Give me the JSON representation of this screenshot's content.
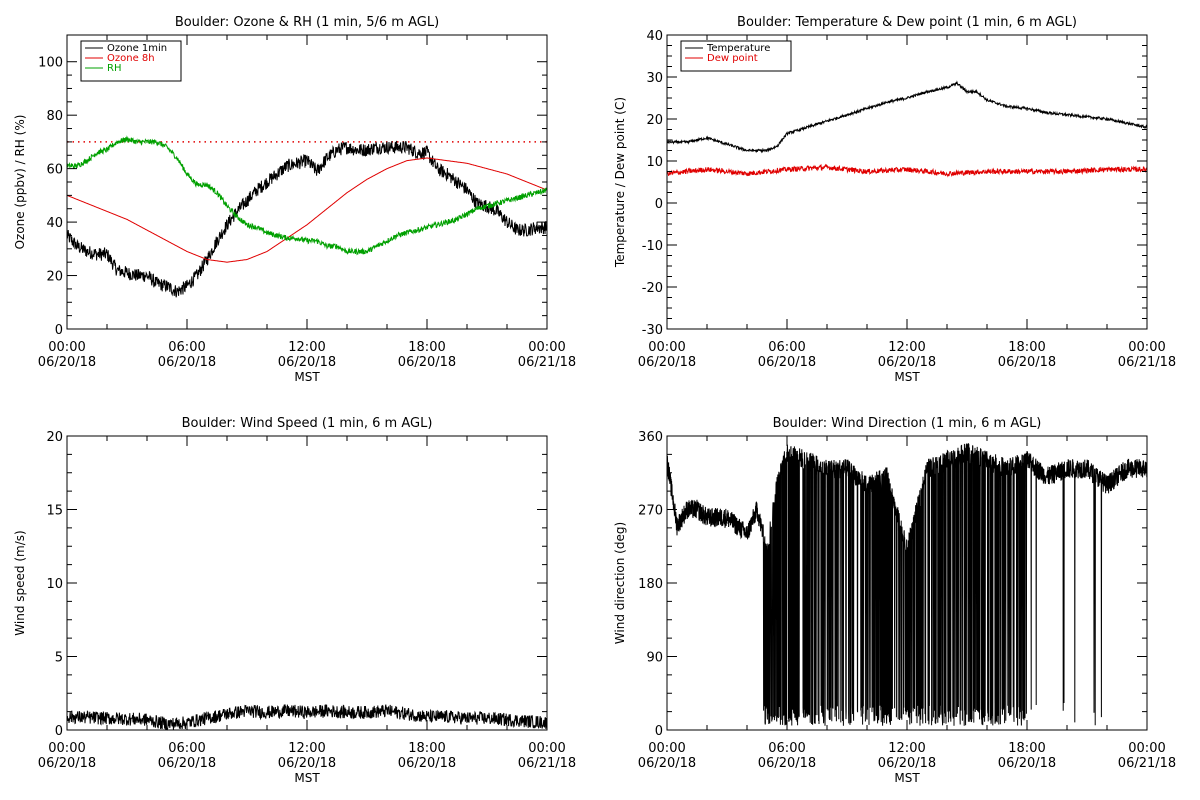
{
  "chart_data": [
    {
      "type": "line",
      "title": "Boulder: Ozone & RH (1 min, 5/6 m AGL)",
      "ylabel": "Ozone (ppbv) / RH (%)",
      "xlabel": "MST",
      "xlim": [
        0,
        24
      ],
      "ylim": [
        0,
        110
      ],
      "yticks": [
        0,
        20,
        40,
        60,
        80,
        100
      ],
      "xtick_times": [
        "00:00",
        "06:00",
        "12:00",
        "18:00",
        "00:00"
      ],
      "xtick_dates": [
        "06/20/18",
        "06/20/18",
        "06/20/18",
        "06/20/18",
        "06/21/18"
      ],
      "reference_line": {
        "y": 70,
        "style": "dotted",
        "color": "#e00000"
      },
      "legend": {
        "position": "top-left"
      },
      "series": [
        {
          "name": "Ozone 1min",
          "color": "#000000",
          "noise": 2.5,
          "dense": false,
          "x": [
            0,
            0.5,
            1,
            1.5,
            2,
            2.5,
            3,
            3.5,
            4,
            4.5,
            5,
            5.5,
            6,
            6.5,
            7,
            7.5,
            8,
            8.5,
            9,
            9.5,
            10,
            10.5,
            11,
            11.5,
            12,
            12.5,
            13,
            13.5,
            14,
            14.5,
            15,
            15.5,
            16,
            16.5,
            17,
            17.5,
            18,
            18.5,
            19,
            19.5,
            20,
            20.5,
            21,
            21.5,
            22,
            22.5,
            23,
            23.5,
            24
          ],
          "y": [
            35,
            31,
            29,
            28,
            28,
            22,
            21,
            20,
            20,
            17,
            16,
            14,
            16,
            20,
            26,
            33,
            39,
            44,
            48,
            52,
            55,
            58,
            61,
            62,
            63,
            59,
            64,
            67,
            68,
            67,
            67,
            68,
            68,
            68,
            68,
            66,
            66,
            60,
            58,
            55,
            52,
            47,
            46,
            44,
            40,
            37,
            37,
            38,
            38
          ]
        },
        {
          "name": "Ozone 8h",
          "color": "#e00000",
          "noise": 0,
          "dense": false,
          "x": [
            0,
            1,
            2,
            3,
            4,
            5,
            6,
            7,
            8,
            9,
            10,
            11,
            12,
            13,
            14,
            15,
            16,
            17,
            18,
            19,
            20,
            21,
            22,
            23,
            24
          ],
          "y": [
            50,
            47,
            44,
            41,
            37,
            33,
            29,
            26,
            25,
            26,
            29,
            34,
            39,
            45,
            51,
            56,
            60,
            63,
            64,
            63,
            62,
            60,
            58,
            55,
            52
          ]
        },
        {
          "name": "RH",
          "color": "#00a000",
          "noise": 1.0,
          "dense": false,
          "x": [
            0,
            0.5,
            1,
            1.5,
            2,
            2.5,
            3,
            3.5,
            4,
            4.5,
            5,
            5.5,
            6,
            6.5,
            7,
            7.5,
            8,
            8.5,
            9,
            9.5,
            10,
            10.5,
            11,
            11.5,
            12,
            12.5,
            13,
            13.5,
            14,
            14.5,
            15,
            15.5,
            16,
            16.5,
            17,
            17.5,
            18,
            18.5,
            19,
            19.5,
            20,
            20.5,
            21,
            21.5,
            22,
            22.5,
            23,
            23.5,
            24
          ],
          "y": [
            61,
            61,
            63,
            66,
            67,
            70,
            71,
            70,
            70,
            70,
            68,
            64,
            58,
            54,
            54,
            51,
            46,
            42,
            39,
            38,
            36,
            35,
            34,
            34,
            33,
            33,
            31,
            31,
            29,
            29,
            29,
            31,
            33,
            35,
            36,
            37,
            38,
            39,
            40,
            41,
            43,
            45,
            46,
            47,
            48,
            49,
            50,
            51,
            52
          ]
        }
      ]
    },
    {
      "type": "line",
      "title": "Boulder: Temperature & Dew point (1 min, 6 m AGL)",
      "ylabel": "Temperature / Dew point (C)",
      "xlabel": "MST",
      "xlim": [
        0,
        24
      ],
      "ylim": [
        -30,
        40
      ],
      "yticks": [
        -30,
        -20,
        -10,
        0,
        10,
        20,
        30,
        40
      ],
      "xtick_times": [
        "00:00",
        "06:00",
        "12:00",
        "18:00",
        "00:00"
      ],
      "xtick_dates": [
        "06/20/18",
        "06/20/18",
        "06/20/18",
        "06/20/18",
        "06/21/18"
      ],
      "legend": {
        "position": "top-left"
      },
      "series": [
        {
          "name": "Temperature",
          "color": "#000000",
          "noise": 0.3,
          "dense": false,
          "x": [
            0,
            1,
            2,
            3,
            4,
            5,
            5.5,
            6,
            7,
            8,
            9,
            10,
            11,
            12,
            13,
            14,
            14.5,
            15,
            15.5,
            16,
            17,
            18,
            19,
            20,
            21,
            22,
            23,
            24
          ],
          "y": [
            14.5,
            14.5,
            15.5,
            14,
            12.5,
            12.5,
            13.5,
            16.5,
            18,
            19.5,
            21,
            22.5,
            24,
            25,
            26.5,
            27.5,
            28.5,
            26.5,
            26.5,
            24.5,
            23,
            22.5,
            21.5,
            21,
            20.5,
            20,
            19,
            18
          ]
        },
        {
          "name": "Dew point",
          "color": "#e00000",
          "noise": 0.6,
          "dense": false,
          "x": [
            0,
            2,
            4,
            6,
            8,
            10,
            12,
            14,
            16,
            18,
            20,
            22,
            24
          ],
          "y": [
            7,
            8,
            7,
            8,
            8.5,
            7.5,
            8,
            7,
            7.5,
            7.5,
            7.5,
            8,
            8
          ]
        }
      ]
    },
    {
      "type": "line",
      "title": "Boulder: Wind Speed (1 min, 6 m AGL)",
      "ylabel": "Wind speed (m/s)",
      "xlabel": "MST",
      "xlim": [
        0,
        24
      ],
      "ylim": [
        0,
        20
      ],
      "yticks": [
        0,
        5,
        10,
        15,
        20
      ],
      "xtick_times": [
        "00:00",
        "06:00",
        "12:00",
        "18:00",
        "00:00"
      ],
      "xtick_dates": [
        "06/20/18",
        "06/20/18",
        "06/20/18",
        "06/20/18",
        "06/21/18"
      ],
      "series": [
        {
          "name": "",
          "color": "#000000",
          "noise": 0.45,
          "dense": false,
          "x": [
            0,
            2,
            4,
            5,
            6,
            7,
            8,
            9,
            10,
            11,
            12,
            13,
            14,
            15,
            16,
            17,
            18,
            19,
            20,
            21,
            22,
            23,
            24
          ],
          "y": [
            0.9,
            0.8,
            0.7,
            0.4,
            0.5,
            0.8,
            1.1,
            1.3,
            1.2,
            1.3,
            1.2,
            1.3,
            1.2,
            1.2,
            1.3,
            1.1,
            0.9,
            0.9,
            0.8,
            0.8,
            0.7,
            0.6,
            0.5
          ]
        }
      ]
    },
    {
      "type": "line",
      "title": "Boulder: Wind Direction (1 min, 6 m AGL)",
      "ylabel": "Wind direction (deg)",
      "xlabel": "MST",
      "xlim": [
        0,
        24
      ],
      "ylim": [
        0,
        360
      ],
      "yticks": [
        0,
        90,
        180,
        270,
        360
      ],
      "xtick_times": [
        "00:00",
        "06:00",
        "12:00",
        "18:00",
        "00:00"
      ],
      "xtick_dates": [
        "06/20/18",
        "06/20/18",
        "06/20/18",
        "06/20/18",
        "06/21/18"
      ],
      "series": [
        {
          "name": "",
          "color": "#000000",
          "noise": 12,
          "dense": true,
          "x": [
            0,
            0.5,
            1,
            1.5,
            2,
            3,
            4,
            4.5,
            5,
            5.5,
            6,
            7,
            8,
            9,
            10,
            11,
            12,
            13,
            14,
            15,
            16,
            17,
            18,
            19,
            20,
            21,
            22,
            23,
            24
          ],
          "y": [
            330,
            250,
            270,
            270,
            260,
            260,
            240,
            270,
            220,
            300,
            340,
            330,
            320,
            320,
            300,
            310,
            220,
            320,
            330,
            340,
            330,
            320,
            330,
            310,
            320,
            320,
            300,
            320,
            320
          ]
        }
      ]
    }
  ]
}
